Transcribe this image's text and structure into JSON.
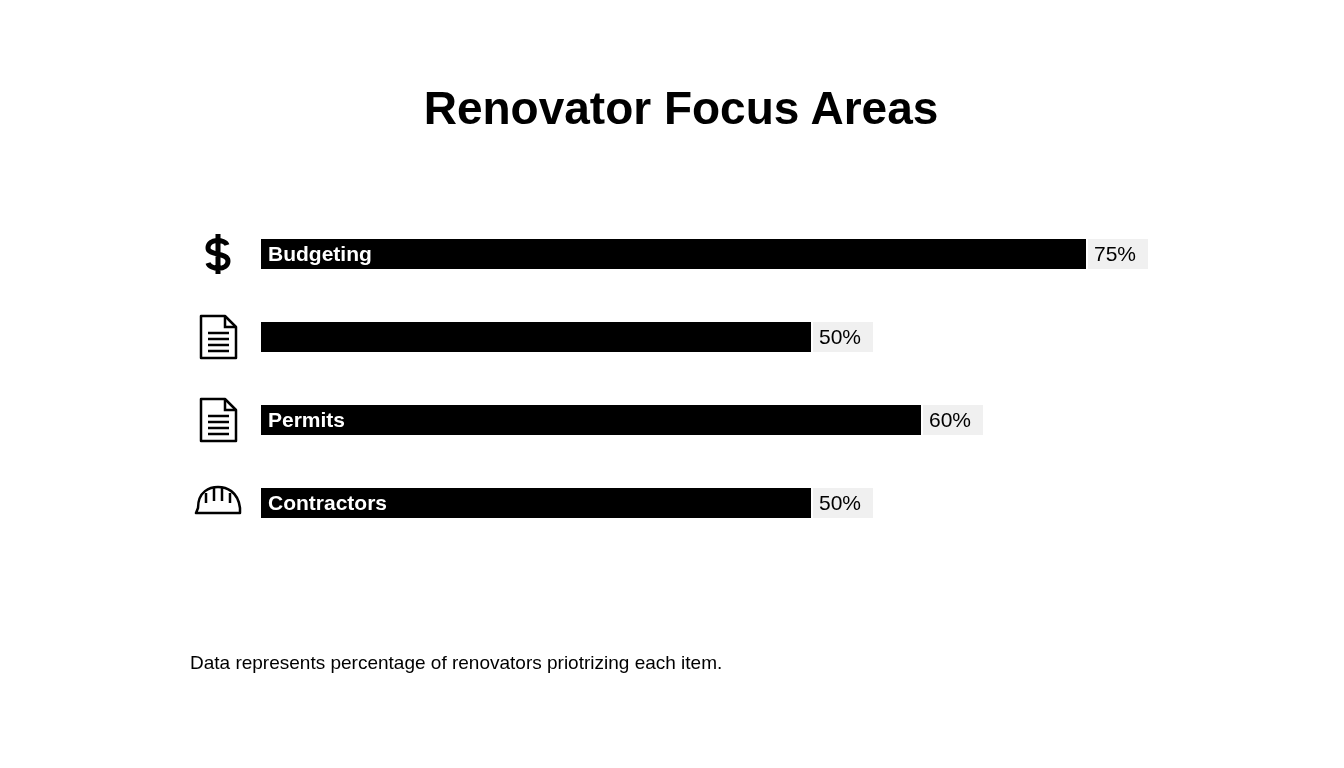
{
  "chart_data": {
    "type": "bar",
    "orientation": "horizontal",
    "title": "Renovator Focus Areas",
    "categories": [
      "Budgeting",
      null,
      "Permits",
      "Contractors"
    ],
    "values": [
      75,
      50,
      60,
      50
    ],
    "value_labels": [
      "75%",
      "50%",
      "60%",
      "50%"
    ],
    "color": "#000000",
    "annotations": [
      "Data represents percentage of renovators priotrizing each item."
    ]
  }
}
